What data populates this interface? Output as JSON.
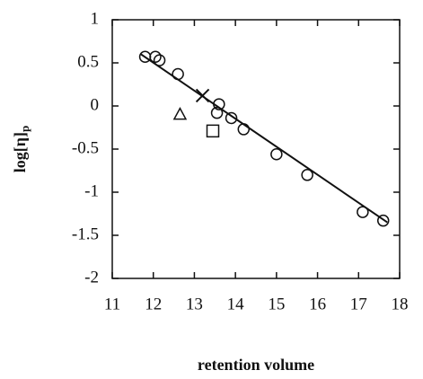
{
  "chart_data": {
    "type": "scatter",
    "x_label": "retention volume",
    "y_label": {
      "main": "log[η]",
      "sub": "p"
    },
    "xlim": [
      11,
      18
    ],
    "ylim": [
      -2,
      1
    ],
    "xticks": [
      11,
      12,
      13,
      14,
      15,
      16,
      17,
      18
    ],
    "yticks": [
      1,
      0.5,
      0,
      -0.5,
      -1,
      -1.5,
      -2
    ],
    "color": "#111111",
    "series": [
      {
        "marker": "circle",
        "x": [
          11.8,
          12.05,
          12.15,
          12.6,
          13.6,
          13.55,
          13.9,
          14.2,
          15.0,
          15.75,
          17.1,
          17.6
        ],
        "values": [
          0.57,
          0.57,
          0.53,
          0.37,
          0.02,
          -0.08,
          -0.14,
          -0.27,
          -0.56,
          -0.8,
          -1.23,
          -1.33
        ]
      },
      {
        "marker": "triangle",
        "x": [
          12.65
        ],
        "values": [
          -0.1
        ]
      },
      {
        "marker": "square",
        "x": [
          13.45
        ],
        "values": [
          -0.29
        ]
      },
      {
        "marker": "cross",
        "x": [
          13.2
        ],
        "values": [
          0.12
        ]
      },
      {
        "marker": "line",
        "x": [
          11.7,
          17.7
        ],
        "values": [
          0.6,
          -1.35
        ]
      }
    ]
  }
}
